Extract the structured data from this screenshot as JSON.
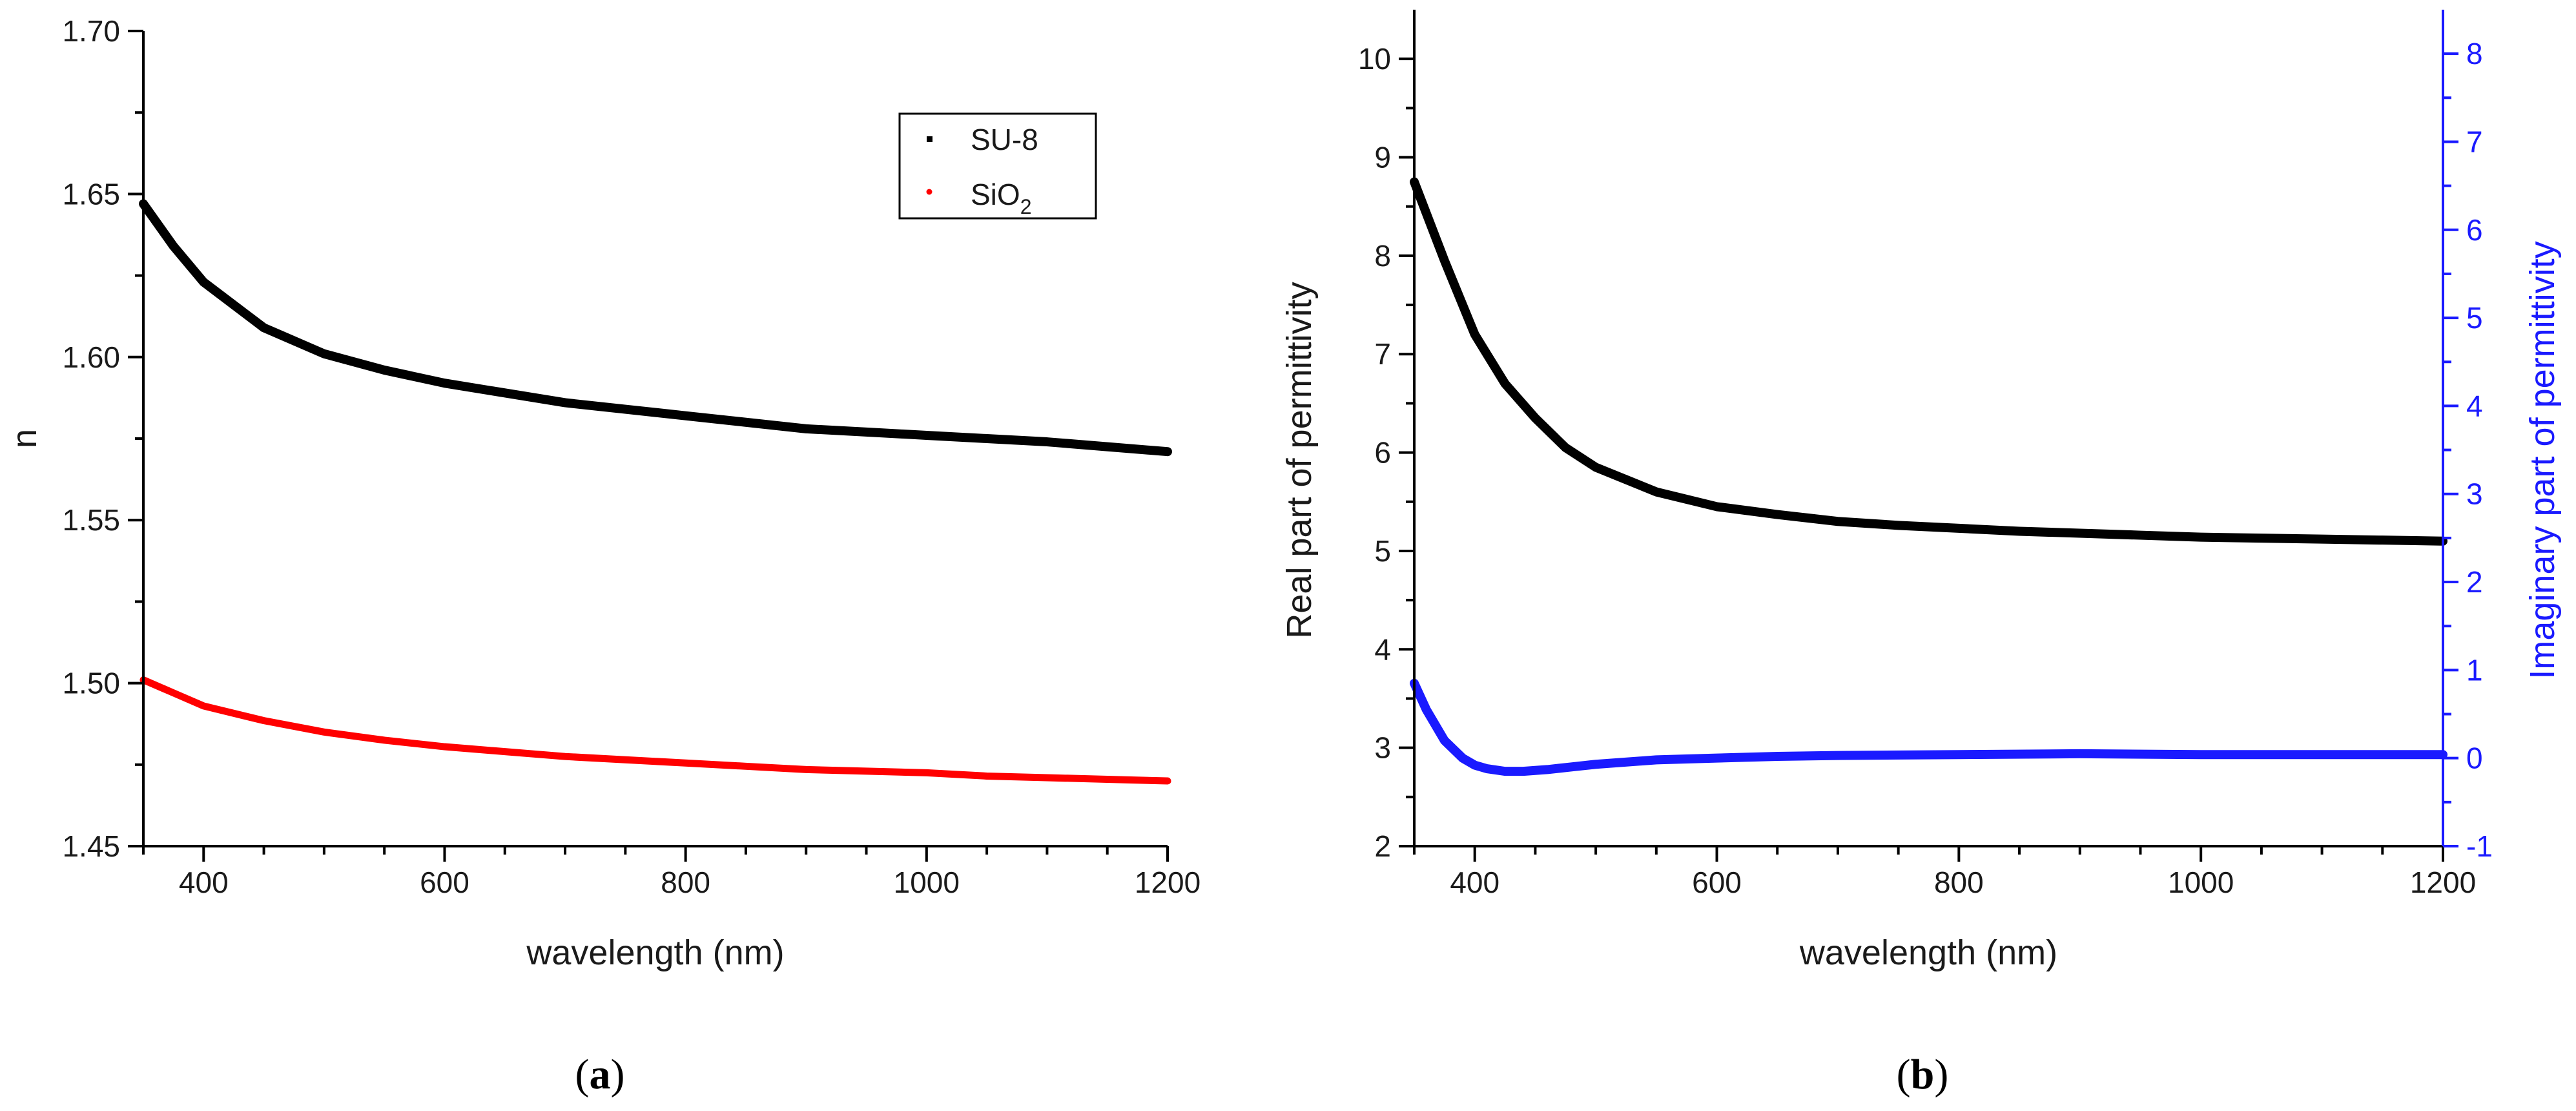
{
  "chart_data": [
    {
      "type": "line",
      "caption": "a",
      "xlabel": "wavelength (nm)",
      "ylabel": "n",
      "xlim": [
        350,
        1200
      ],
      "ylim": [
        1.45,
        1.7
      ],
      "xticks": [
        400,
        600,
        800,
        1000,
        1200
      ],
      "xtick_labels": [
        "400",
        "600",
        "800",
        "1000",
        "1200"
      ],
      "yticks": [
        1.45,
        1.5,
        1.55,
        1.6,
        1.65,
        1.7
      ],
      "ytick_labels": [
        "1.45",
        "1.50",
        "1.55",
        "1.60",
        "1.65",
        "1.70"
      ],
      "legend": {
        "position": "top-right",
        "entries": [
          "SU-8",
          "SiO2"
        ]
      },
      "legend_label_su8": "SU-8",
      "legend_label_sio2_base": "SiO",
      "legend_label_sio2_sub": "2",
      "series": [
        {
          "name": "SU-8",
          "color": "#000000",
          "x": [
            350,
            375,
            400,
            450,
            500,
            550,
            600,
            650,
            700,
            750,
            800,
            850,
            900,
            950,
            1000,
            1050,
            1100,
            1150,
            1200
          ],
          "values": [
            1.647,
            1.634,
            1.623,
            1.609,
            1.601,
            1.596,
            1.592,
            1.589,
            1.586,
            1.584,
            1.582,
            1.58,
            1.578,
            1.577,
            1.576,
            1.575,
            1.574,
            1.5725,
            1.571
          ]
        },
        {
          "name": "SiO2",
          "color": "#ff0000",
          "x": [
            350,
            375,
            400,
            450,
            500,
            550,
            600,
            650,
            700,
            750,
            800,
            850,
            900,
            950,
            1000,
            1050,
            1100,
            1150,
            1200
          ],
          "values": [
            1.501,
            1.497,
            1.493,
            1.4885,
            1.485,
            1.4825,
            1.4805,
            1.479,
            1.4775,
            1.4765,
            1.4755,
            1.4745,
            1.4735,
            1.473,
            1.4725,
            1.4715,
            1.471,
            1.4705,
            1.47
          ]
        }
      ]
    },
    {
      "type": "line",
      "caption": "b",
      "xlabel": "wavelength (nm)",
      "ylabel": "Real part of permittivity",
      "y2label": "Imaginary part of permittivity",
      "xlim": [
        350,
        1200
      ],
      "ylim": [
        2,
        10.5
      ],
      "y2lim": [
        -1,
        8.5
      ],
      "xticks": [
        400,
        600,
        800,
        1000,
        1200
      ],
      "xtick_labels": [
        "400",
        "600",
        "800",
        "1000",
        "1200"
      ],
      "yticks": [
        2,
        3,
        4,
        5,
        6,
        7,
        8,
        9,
        10
      ],
      "ytick_labels": [
        "2",
        "3",
        "4",
        "5",
        "6",
        "7",
        "8",
        "9",
        "10"
      ],
      "y2ticks": [
        -1,
        0,
        1,
        2,
        3,
        4,
        5,
        6,
        7,
        8
      ],
      "y2tick_labels": [
        "-1",
        "0",
        "1",
        "2",
        "3",
        "4",
        "5",
        "6",
        "7",
        "8"
      ],
      "series": [
        {
          "name": "Real part",
          "axis": "left",
          "color": "#000000",
          "x": [
            350,
            375,
            400,
            425,
            450,
            475,
            500,
            550,
            600,
            650,
            700,
            750,
            800,
            850,
            900,
            950,
            1000,
            1050,
            1100,
            1150,
            1200
          ],
          "values": [
            8.75,
            7.95,
            7.2,
            6.7,
            6.35,
            6.05,
            5.85,
            5.6,
            5.45,
            5.37,
            5.3,
            5.26,
            5.23,
            5.2,
            5.18,
            5.16,
            5.14,
            5.13,
            5.12,
            5.11,
            5.1
          ]
        },
        {
          "name": "Imaginary part",
          "axis": "right",
          "color": "#1a1aff",
          "x": [
            350,
            360,
            375,
            390,
            400,
            410,
            425,
            440,
            460,
            480,
            500,
            550,
            600,
            650,
            700,
            800,
            900,
            1000,
            1100,
            1200
          ],
          "values": [
            0.85,
            0.55,
            0.2,
            0.0,
            -0.08,
            -0.12,
            -0.15,
            -0.15,
            -0.13,
            -0.1,
            -0.07,
            -0.02,
            0.0,
            0.02,
            0.03,
            0.04,
            0.05,
            0.04,
            0.04,
            0.04
          ]
        }
      ]
    }
  ]
}
